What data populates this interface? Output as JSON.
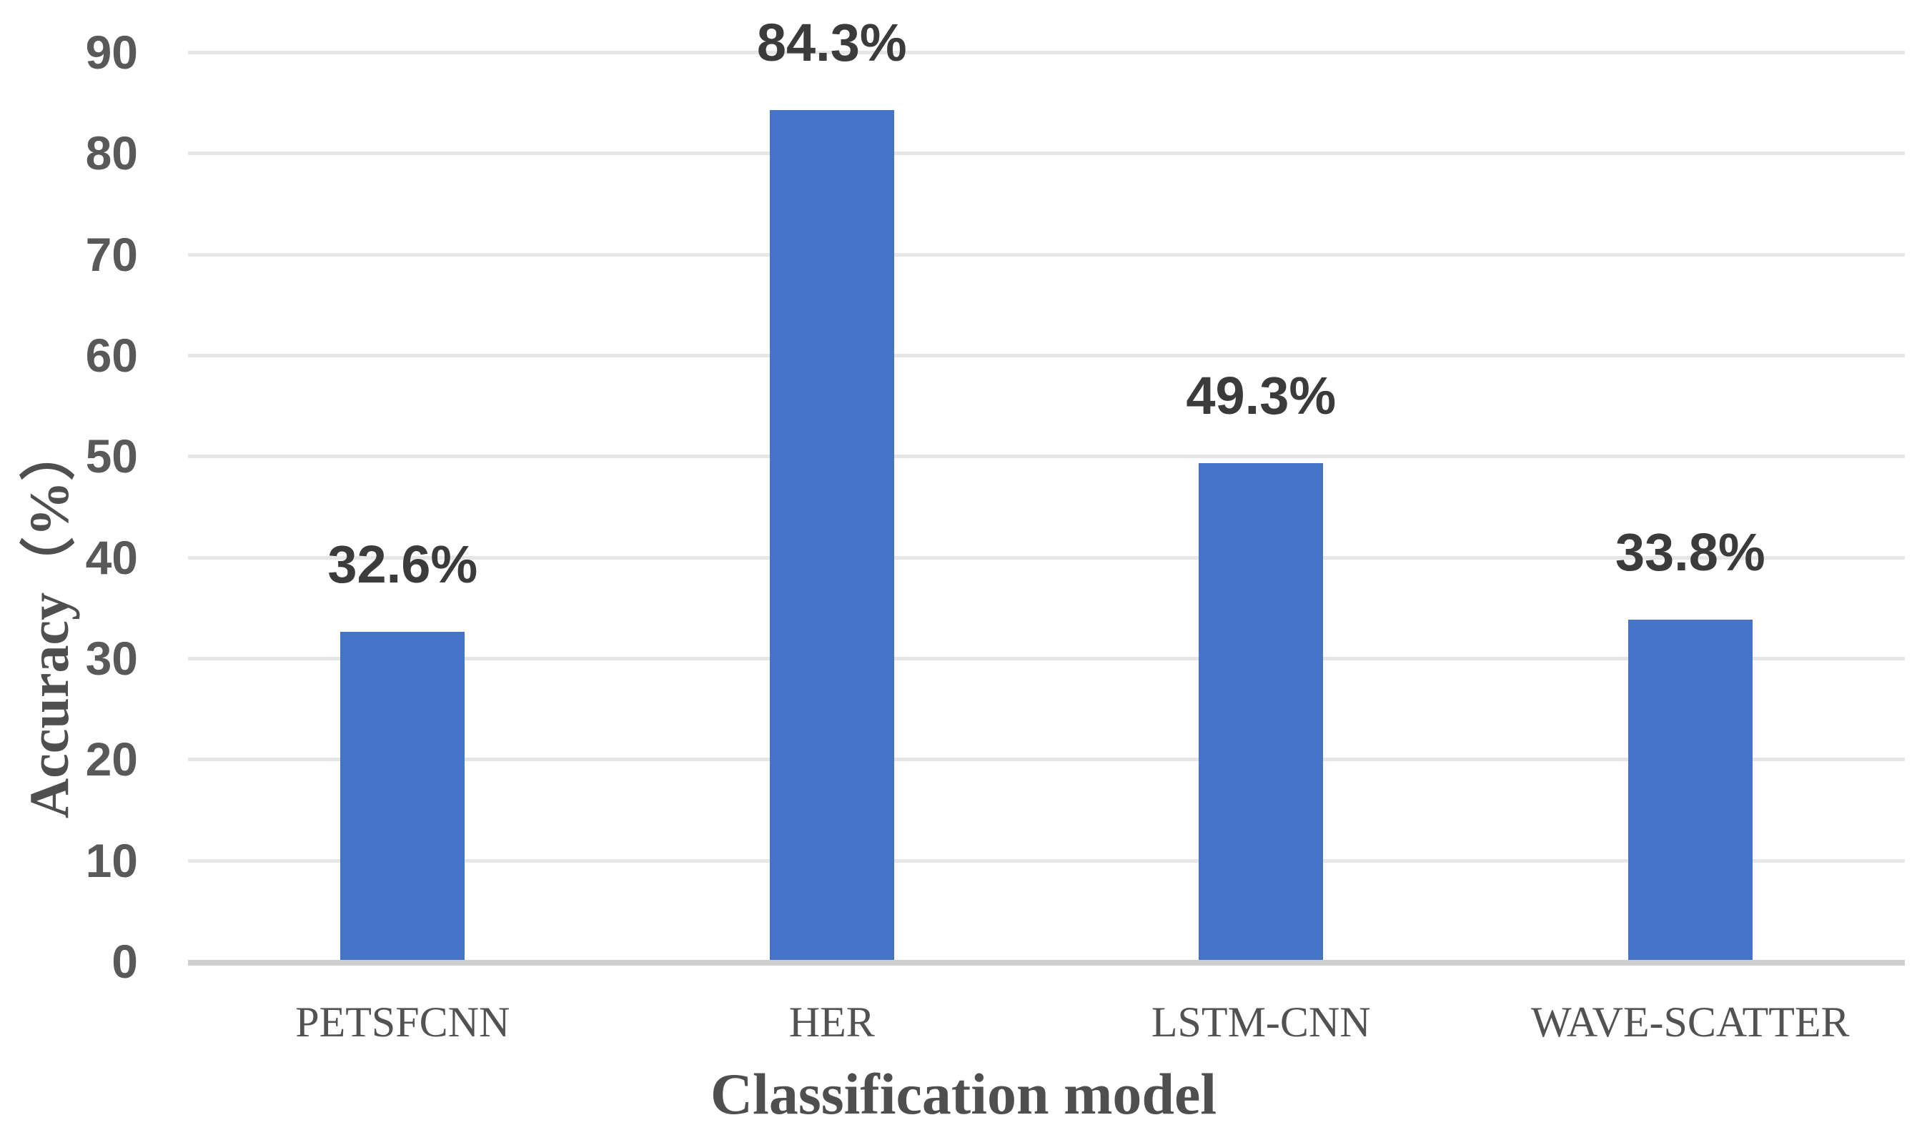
{
  "figure": {
    "background": "#ffffff"
  },
  "chart_data": {
    "type": "bar",
    "title": "",
    "categories": [
      "PETSFCNN",
      "HER",
      "LSTM-CNN",
      "WAVE-SCATTER"
    ],
    "values": [
      32.6,
      84.3,
      49.3,
      33.8
    ],
    "bar_labels": [
      "32.6%",
      "84.3%",
      "49.3%",
      "33.8%"
    ],
    "xlabel": "Classification model",
    "ylabel": "Accuracy（%）",
    "ylim": [
      0,
      90
    ],
    "yticks": [
      0,
      10,
      20,
      30,
      40,
      50,
      60,
      70,
      80,
      90
    ],
    "grid": "horizontal-only",
    "legend": "none",
    "colors": {
      "bar": "#4573C7",
      "gridline": "#E6E6E6",
      "baseline": "#CFCFCF",
      "tick_label": "#595959",
      "bar_label": "#3B3B3B",
      "category_label": "#525252",
      "axis_title": "#4F4F4F",
      "background": "#ffffff"
    }
  }
}
